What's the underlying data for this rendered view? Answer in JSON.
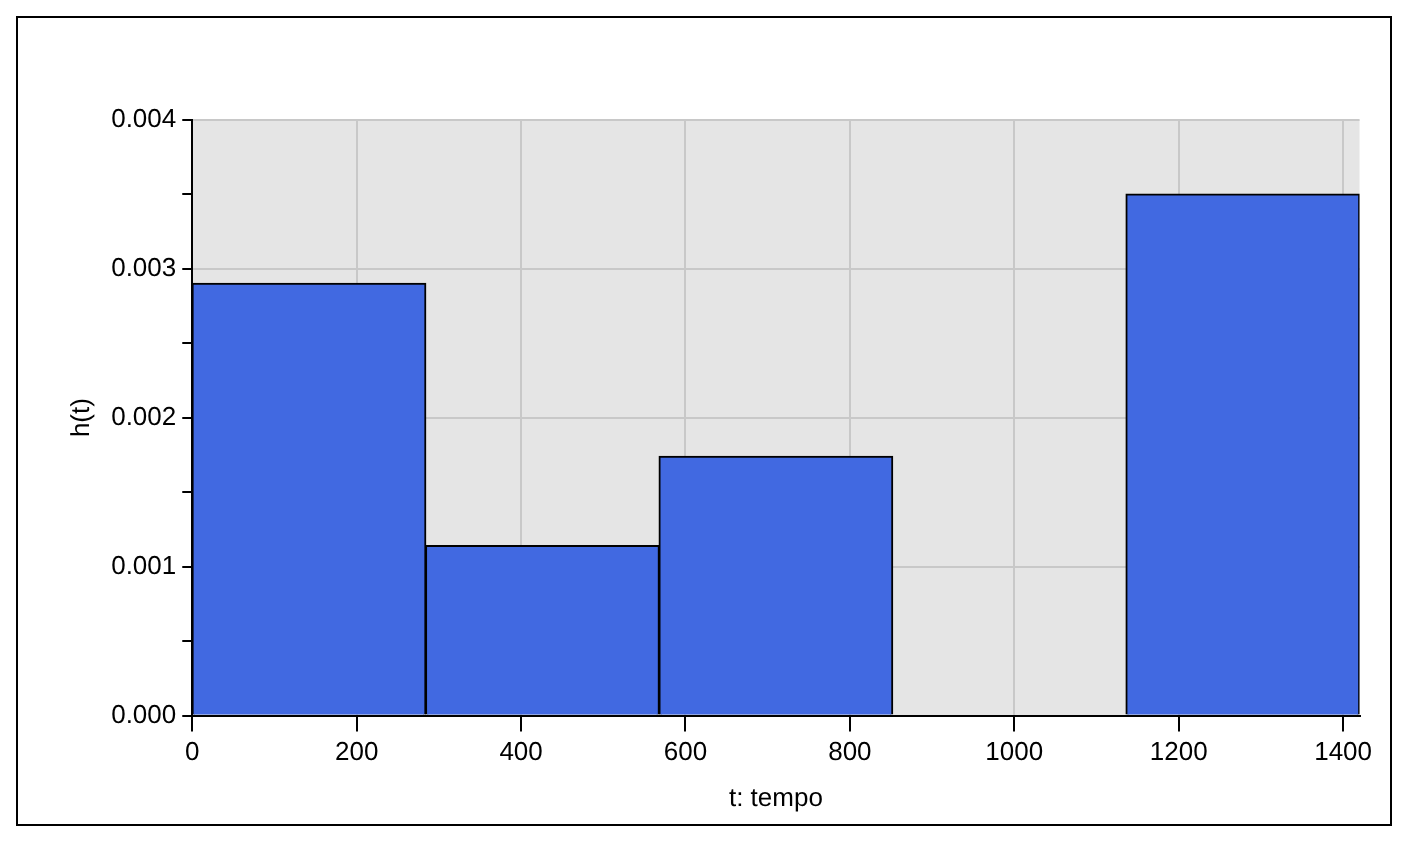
{
  "chart_data": {
    "type": "histogram",
    "xlabel": "t: tempo",
    "ylabel": "h(t)",
    "bins": [
      0,
      284,
      568,
      852,
      1136,
      1420
    ],
    "values": [
      0.0029,
      0.00114,
      0.00174,
      0,
      0.0035
    ],
    "color": "#4169e1",
    "xlim": [
      0,
      1420
    ],
    "xticks": [
      0,
      200,
      400,
      600,
      800,
      1000,
      1200,
      1400
    ],
    "ylim": [
      0,
      0.004
    ],
    "yticks": [
      {
        "value": 0,
        "label": "0.000"
      },
      {
        "value": 0.0005,
        "label": null
      },
      {
        "value": 0.001,
        "label": "0.001"
      },
      {
        "value": 0.0015,
        "label": null
      },
      {
        "value": 0.002,
        "label": "0.002"
      },
      {
        "value": 0.0025,
        "label": null
      },
      {
        "value": 0.003,
        "label": "0.003"
      },
      {
        "value": 0.0035,
        "label": null
      },
      {
        "value": 0.004,
        "label": "0.004"
      }
    ],
    "grid": true,
    "legend": false
  }
}
